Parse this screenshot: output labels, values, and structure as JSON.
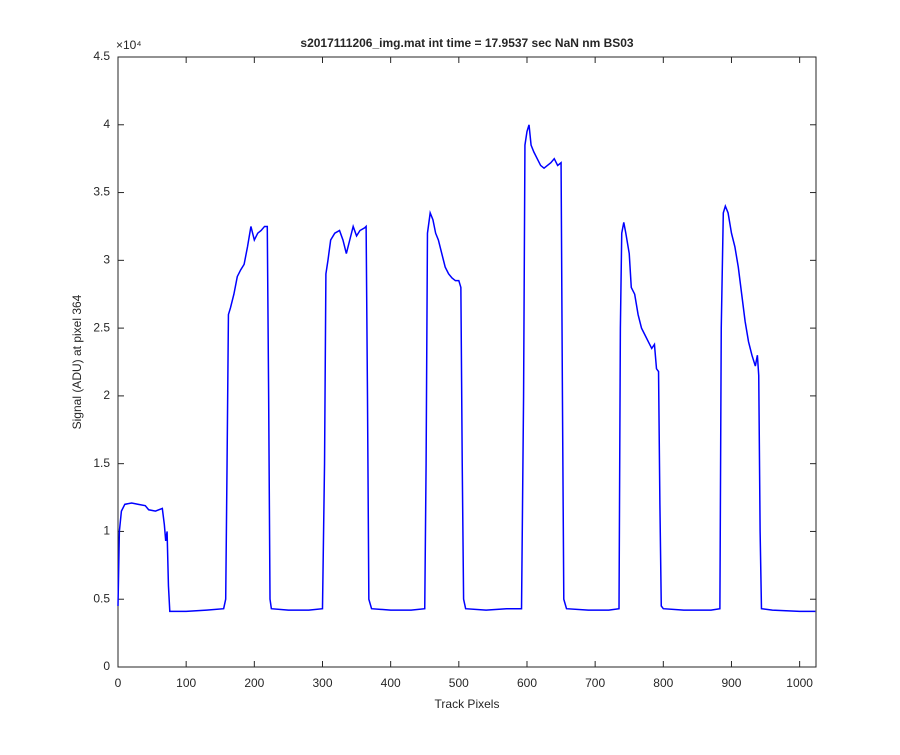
{
  "chart_data": {
    "type": "line",
    "title": "s2017111206_img.mat int time = 17.9537 sec  NaN nm BS03",
    "x_label": "Track Pixels",
    "y_label": "Signal (ADU) at pixel 364",
    "y_exponent_label": "×10⁴",
    "xlim": [
      0,
      1024
    ],
    "xticks": [
      0,
      100,
      200,
      300,
      400,
      500,
      600,
      700,
      800,
      900,
      1000
    ],
    "ylim": [
      0,
      4.5
    ],
    "yticks": [
      0,
      0.5,
      1,
      1.5,
      2,
      2.5,
      3,
      3.5,
      4,
      4.5
    ],
    "grid": false,
    "series": [
      {
        "color": "#0000ff",
        "x": [
          0,
          2,
          5,
          10,
          20,
          30,
          40,
          45,
          55,
          65,
          68,
          70,
          72,
          74,
          76,
          100,
          130,
          155,
          158,
          160,
          162,
          165,
          170,
          175,
          180,
          185,
          190,
          195,
          200,
          205,
          210,
          215,
          219,
          221,
          223,
          225,
          250,
          280,
          300,
          303,
          305,
          308,
          312,
          318,
          325,
          330,
          335,
          340,
          345,
          350,
          355,
          362,
          364,
          366,
          368,
          372,
          400,
          430,
          450,
          452,
          454,
          458,
          462,
          466,
          470,
          475,
          480,
          485,
          490,
          495,
          500,
          503,
          505,
          507,
          510,
          540,
          570,
          592,
          595,
          597,
          600,
          603,
          606,
          610,
          615,
          620,
          625,
          630,
          635,
          640,
          645,
          650,
          652,
          654,
          658,
          690,
          720,
          735,
          737,
          739,
          742,
          745,
          750,
          753,
          758,
          763,
          768,
          773,
          778,
          783,
          787,
          790,
          793,
          795,
          797,
          800,
          830,
          870,
          883,
          885,
          888,
          891,
          895,
          900,
          905,
          910,
          915,
          920,
          925,
          930,
          935,
          938,
          940,
          942,
          944,
          960,
          1000,
          1023
        ],
        "values": [
          0.45,
          1.0,
          1.15,
          1.2,
          1.21,
          1.2,
          1.19,
          1.16,
          1.15,
          1.17,
          1.05,
          0.93,
          1.0,
          0.6,
          0.41,
          0.41,
          0.42,
          0.43,
          0.5,
          1.5,
          2.6,
          2.65,
          2.75,
          2.88,
          2.93,
          2.97,
          3.1,
          3.25,
          3.15,
          3.2,
          3.22,
          3.25,
          3.25,
          2.0,
          0.5,
          0.43,
          0.42,
          0.42,
          0.43,
          1.5,
          2.9,
          3.0,
          3.15,
          3.2,
          3.22,
          3.15,
          3.05,
          3.15,
          3.25,
          3.18,
          3.22,
          3.24,
          3.25,
          2.0,
          0.5,
          0.43,
          0.42,
          0.42,
          0.43,
          1.5,
          3.2,
          3.35,
          3.3,
          3.2,
          3.15,
          3.05,
          2.95,
          2.9,
          2.87,
          2.85,
          2.85,
          2.8,
          1.5,
          0.5,
          0.43,
          0.42,
          0.43,
          0.43,
          2.0,
          3.85,
          3.95,
          4.0,
          3.85,
          3.8,
          3.75,
          3.7,
          3.68,
          3.7,
          3.72,
          3.75,
          3.7,
          3.72,
          2.0,
          0.5,
          0.43,
          0.42,
          0.42,
          0.43,
          2.5,
          3.2,
          3.28,
          3.2,
          3.05,
          2.8,
          2.75,
          2.6,
          2.5,
          2.45,
          2.4,
          2.35,
          2.38,
          2.2,
          2.18,
          1.2,
          0.45,
          0.43,
          0.42,
          0.42,
          0.43,
          2.5,
          3.35,
          3.4,
          3.35,
          3.2,
          3.1,
          2.95,
          2.75,
          2.55,
          2.4,
          2.3,
          2.22,
          2.3,
          2.15,
          1.0,
          0.43,
          0.42,
          0.41,
          0.41
        ]
      }
    ]
  }
}
